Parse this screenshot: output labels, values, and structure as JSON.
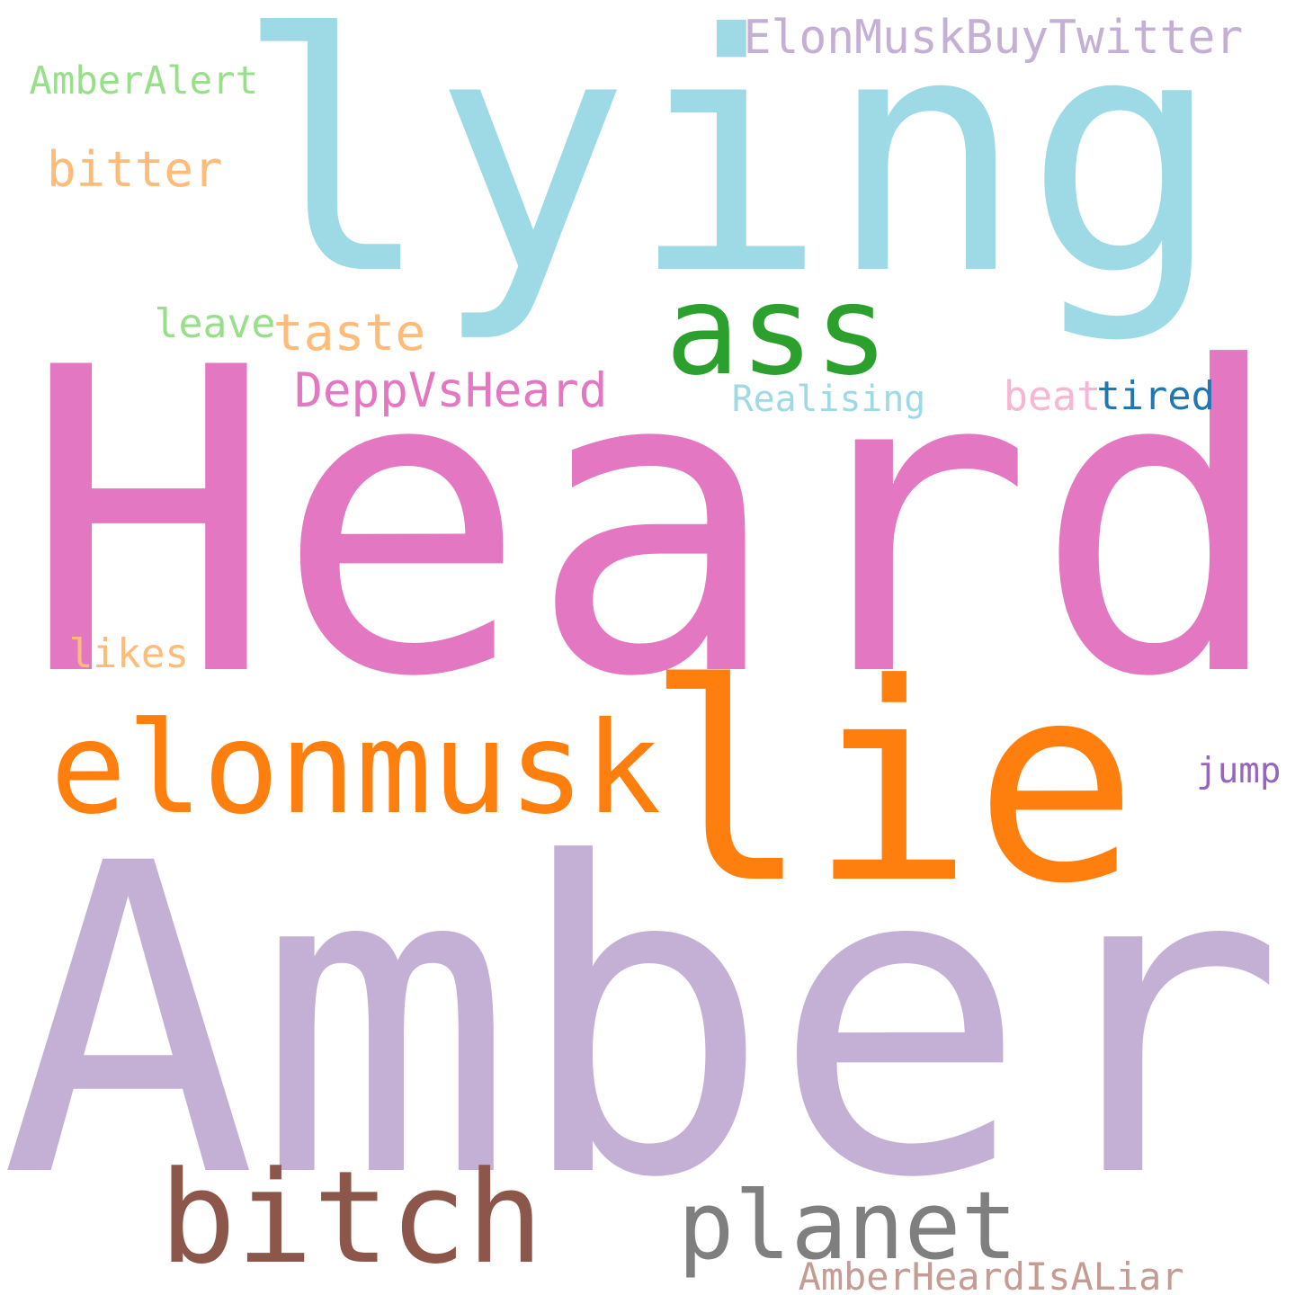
{
  "words": [
    {
      "text": "Heard",
      "color": "#e377c2"
    },
    {
      "text": "Amber",
      "color": "#c5b0d5"
    },
    {
      "text": "lying",
      "color": "#9edae5"
    },
    {
      "text": "lie",
      "color": "#ff7f0e"
    },
    {
      "text": "elonmusk",
      "color": "#ff7f0e"
    },
    {
      "text": "bitch",
      "color": "#8c564b"
    },
    {
      "text": "planet",
      "color": "#7f7f7f"
    },
    {
      "text": "ass",
      "color": "#2ca02c"
    },
    {
      "text": "ElonMuskBuyTwitter",
      "color": "#c5b0d5"
    },
    {
      "text": "DeppVsHeard",
      "color": "#e377c2"
    },
    {
      "text": "taste",
      "color": "#ffbb78"
    },
    {
      "text": "bitter",
      "color": "#ffbb78"
    },
    {
      "text": "AmberAlert",
      "color": "#98df8a"
    },
    {
      "text": "Realising",
      "color": "#9edae5"
    },
    {
      "text": "leave",
      "color": "#98df8a"
    },
    {
      "text": "beat",
      "color": "#f7b6d2"
    },
    {
      "text": "tired",
      "color": "#1f77b4"
    },
    {
      "text": "likes",
      "color": "#ffbb78"
    },
    {
      "text": "jump",
      "color": "#9467bd"
    },
    {
      "text": "AmberHeardIsALiar",
      "color": "#c49c94"
    }
  ]
}
